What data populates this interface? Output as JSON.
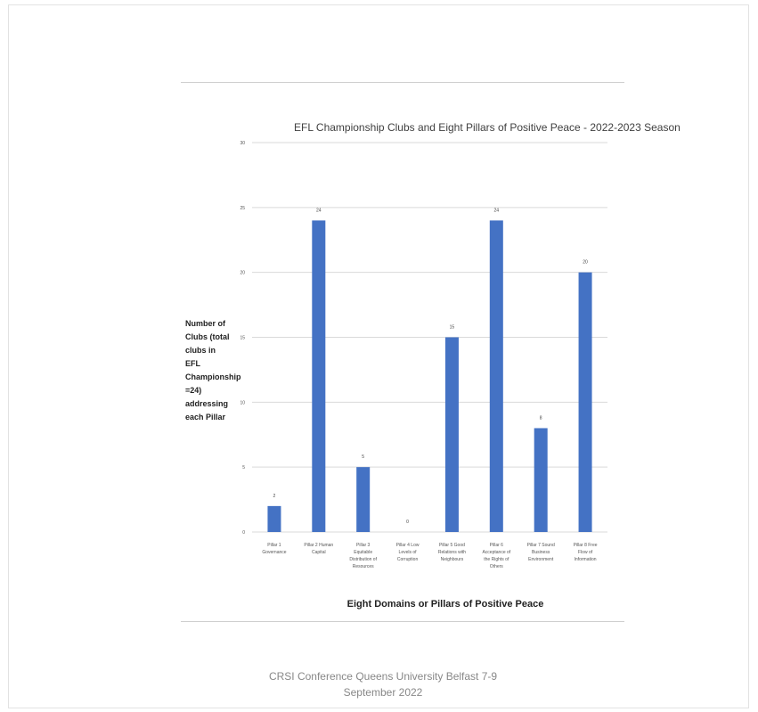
{
  "footer": {
    "line1": "CRSI Conference Queens University Belfast 7-9",
    "line2": "September 2022"
  },
  "chart_data": {
    "type": "bar",
    "title": "EFL Championship Clubs and Eight Pillars of Positive Peace - 2022-2023 Season",
    "ylabel": "Number of Clubs (total clubs in EFL Championship =24) addressing each Pillar",
    "xlabel": "Eight Domains or Pillars of Positive Peace",
    "categories": [
      "Pillar 1 Governance",
      "Pillar 2 Human Capital",
      "Pillar 3 Equitable Distribution of Resources",
      "Pillar 4 Low Levels of Corruption",
      "Pillar 5 Good Relations with Neighbours",
      "Pillar 6 Acceptance of the Rights of Others",
      "Pillar 7 Sound Business Environment",
      "Pillar 8 Free Flow of Information"
    ],
    "values": [
      2,
      24,
      5,
      0,
      15,
      24,
      8,
      20
    ],
    "ylim": [
      0,
      30
    ],
    "yticks": [
      0,
      5,
      10,
      15,
      20,
      25,
      30
    ],
    "grid": true,
    "bar_color": "#4472c4"
  }
}
